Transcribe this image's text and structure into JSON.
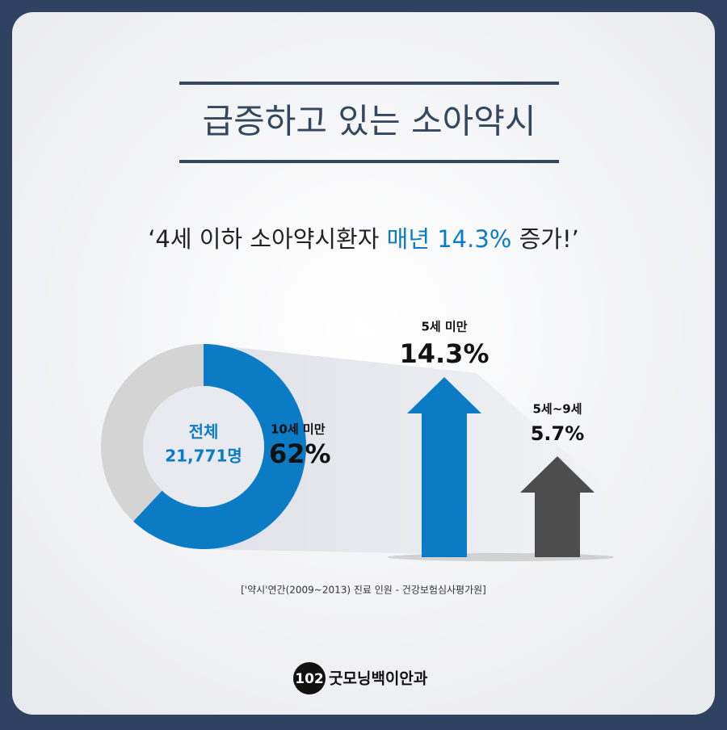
{
  "header": {
    "title": "급증하고 있는 소아약시",
    "subtitle": [
      "‘4세 이하 소아약시환자 ",
      "매년 14.3%",
      " 증가!’"
    ]
  },
  "chart_data": [
    {
      "type": "pie",
      "center_label": [
        "전체",
        "21,771명"
      ],
      "categories": [
        "10세 미만"
      ],
      "values": [
        62
      ],
      "value_labels": [
        "62%"
      ],
      "color": "#0a7bc4",
      "rest_color": "#d4d4d4"
    },
    {
      "type": "bar",
      "categories": [
        "5세 미만",
        "5세~9세"
      ],
      "values": [
        14.3,
        5.7
      ],
      "value_labels": [
        "14.3%",
        "5.7%"
      ],
      "colors": [
        "#0a7bc4",
        "#4d4d4d"
      ]
    }
  ],
  "source": "['약시'연간(2009~2013) 진료 인원 - 건강보험심사평가원]",
  "footer": {
    "logo": "102",
    "name": "굿모닝백이안과"
  }
}
